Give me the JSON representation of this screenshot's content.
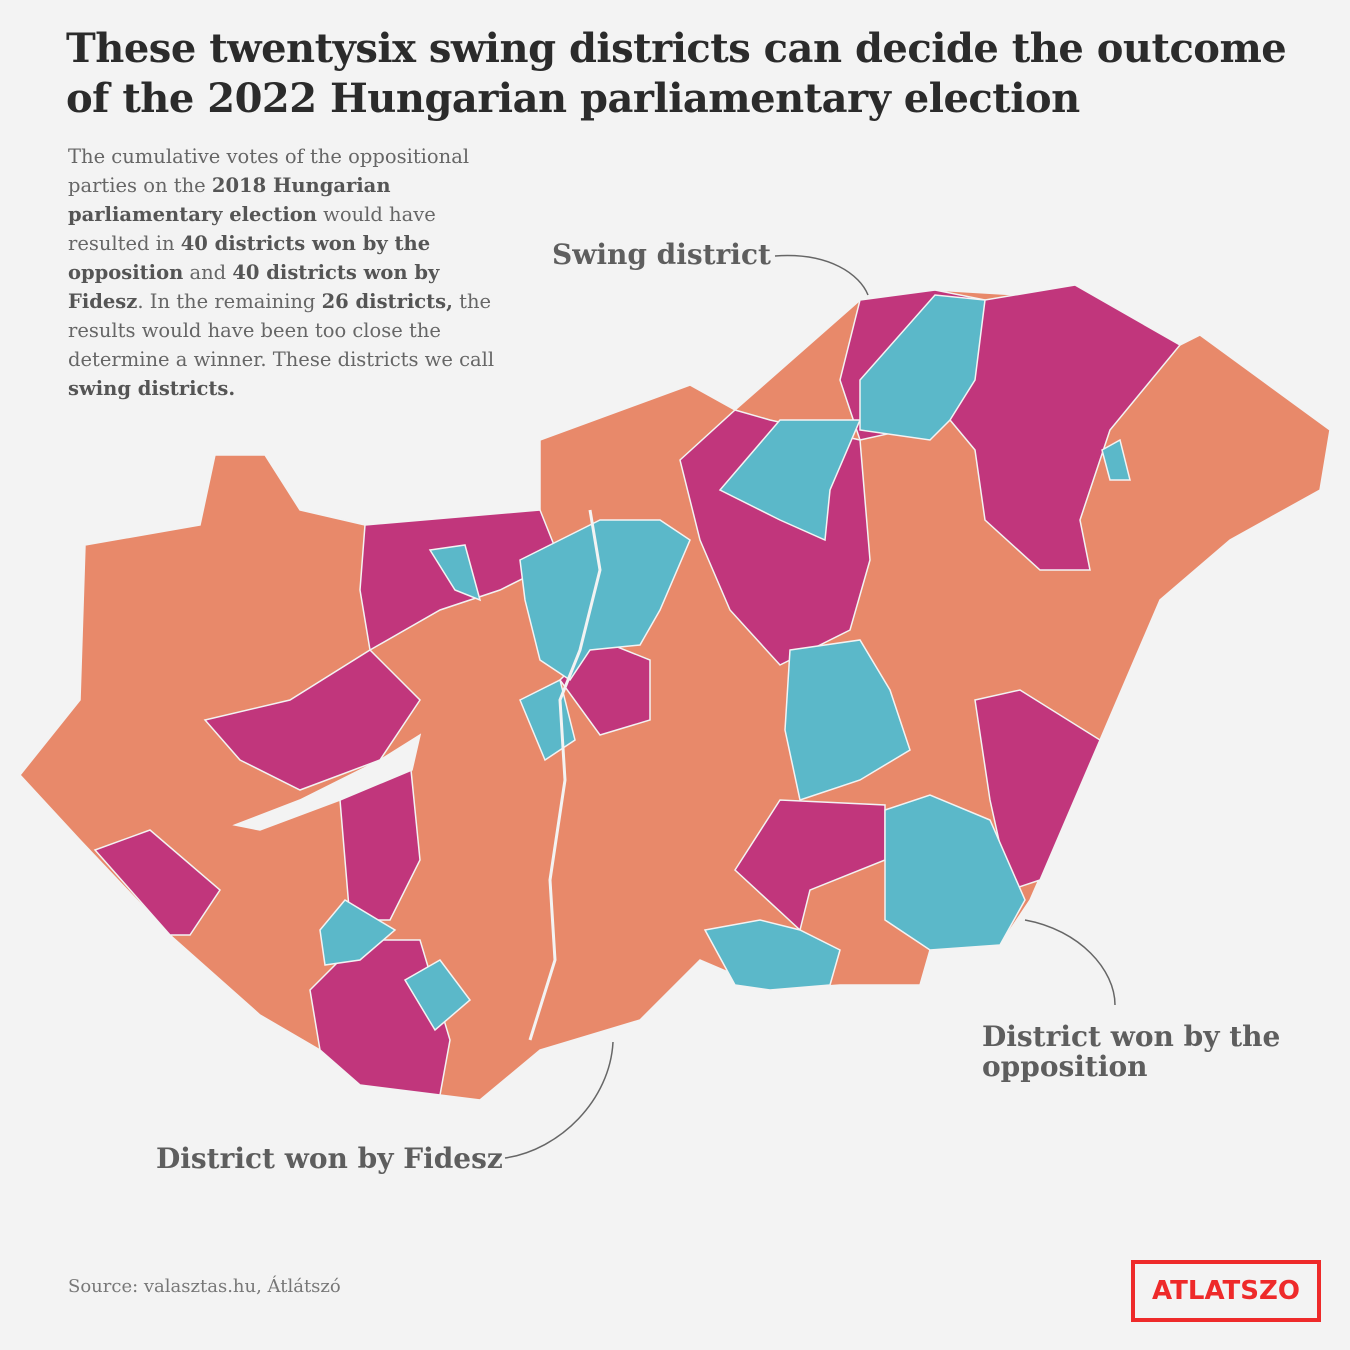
{
  "title_lines": [
    "These twentysix swing districts can decide the outcome",
    "of the 2022 Hungarian parliamentary election"
  ],
  "description": [
    {
      "text": "The cumulative votes of the oppositional parties on the ",
      "bold": false
    },
    {
      "text": "2018 Hungarian parliamentary election",
      "bold": true
    },
    {
      "text": " would have resulted in ",
      "bold": false
    },
    {
      "text": "40 districts won by the opposition",
      "bold": true
    },
    {
      "text": " and ",
      "bold": false
    },
    {
      "text": "40 districts won by Fidesz",
      "bold": true
    },
    {
      "text": ". In the remaining ",
      "bold": false
    },
    {
      "text": "26 districts,",
      "bold": true
    },
    {
      "text": " the results would have been too close the determine a winner. These districts we call ",
      "bold": false
    },
    {
      "text": "swing districts.",
      "bold": true
    }
  ],
  "annotations": {
    "swing": "Swing district",
    "opposition_lines": [
      "District won by the",
      "opposition"
    ],
    "fidesz": "District won by Fidesz"
  },
  "colors": {
    "fidesz": "#e8896a",
    "opposition": "#c1367c",
    "swing": "#5bb8c9"
  },
  "source": "Source: valasztas.hu, Átlátszó",
  "logo": "ATLATSZO"
}
